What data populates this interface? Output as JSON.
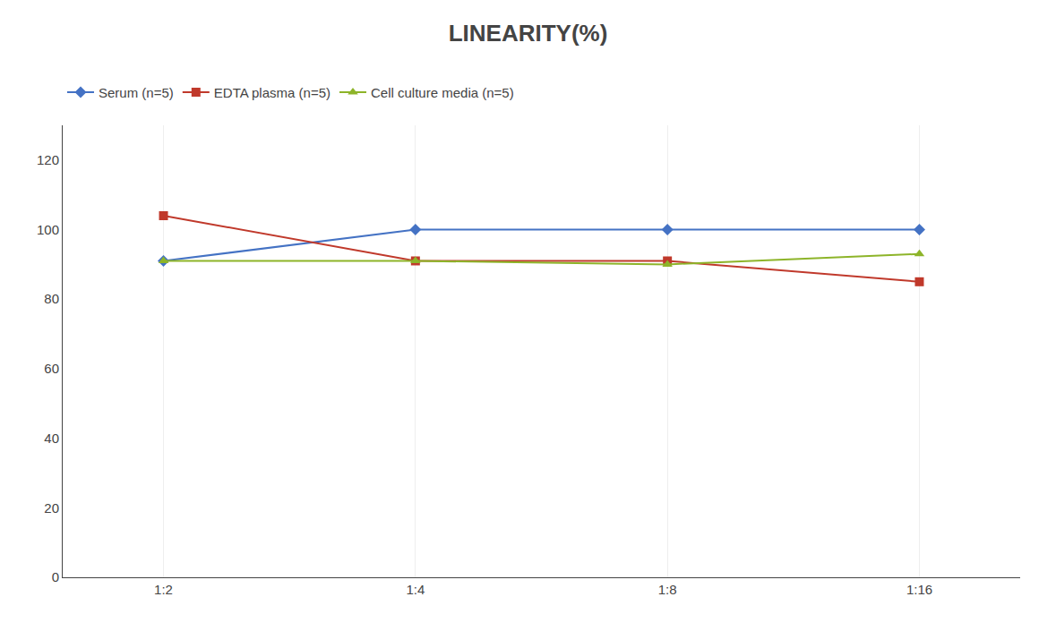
{
  "chart_data": {
    "type": "line",
    "title": "LINEARITY(%)",
    "categories": [
      "1:2",
      "1:4",
      "1:8",
      "1:16"
    ],
    "series": [
      {
        "name": "Serum (n=5)",
        "color": "#4472C4",
        "marker": "diamond",
        "values": [
          91,
          100,
          100,
          100
        ]
      },
      {
        "name": "EDTA plasma (n=5)",
        "color": "#C0392B",
        "marker": "square",
        "values": [
          104,
          91,
          91,
          85
        ]
      },
      {
        "name": "Cell culture media (n=5)",
        "color": "#8DB429",
        "marker": "triangle-up",
        "values": [
          91,
          91,
          90,
          93
        ]
      }
    ],
    "ylim": [
      0,
      130
    ],
    "yticks": [
      0,
      20,
      40,
      60,
      80,
      100,
      120
    ],
    "grid": "x",
    "legend": "top"
  }
}
